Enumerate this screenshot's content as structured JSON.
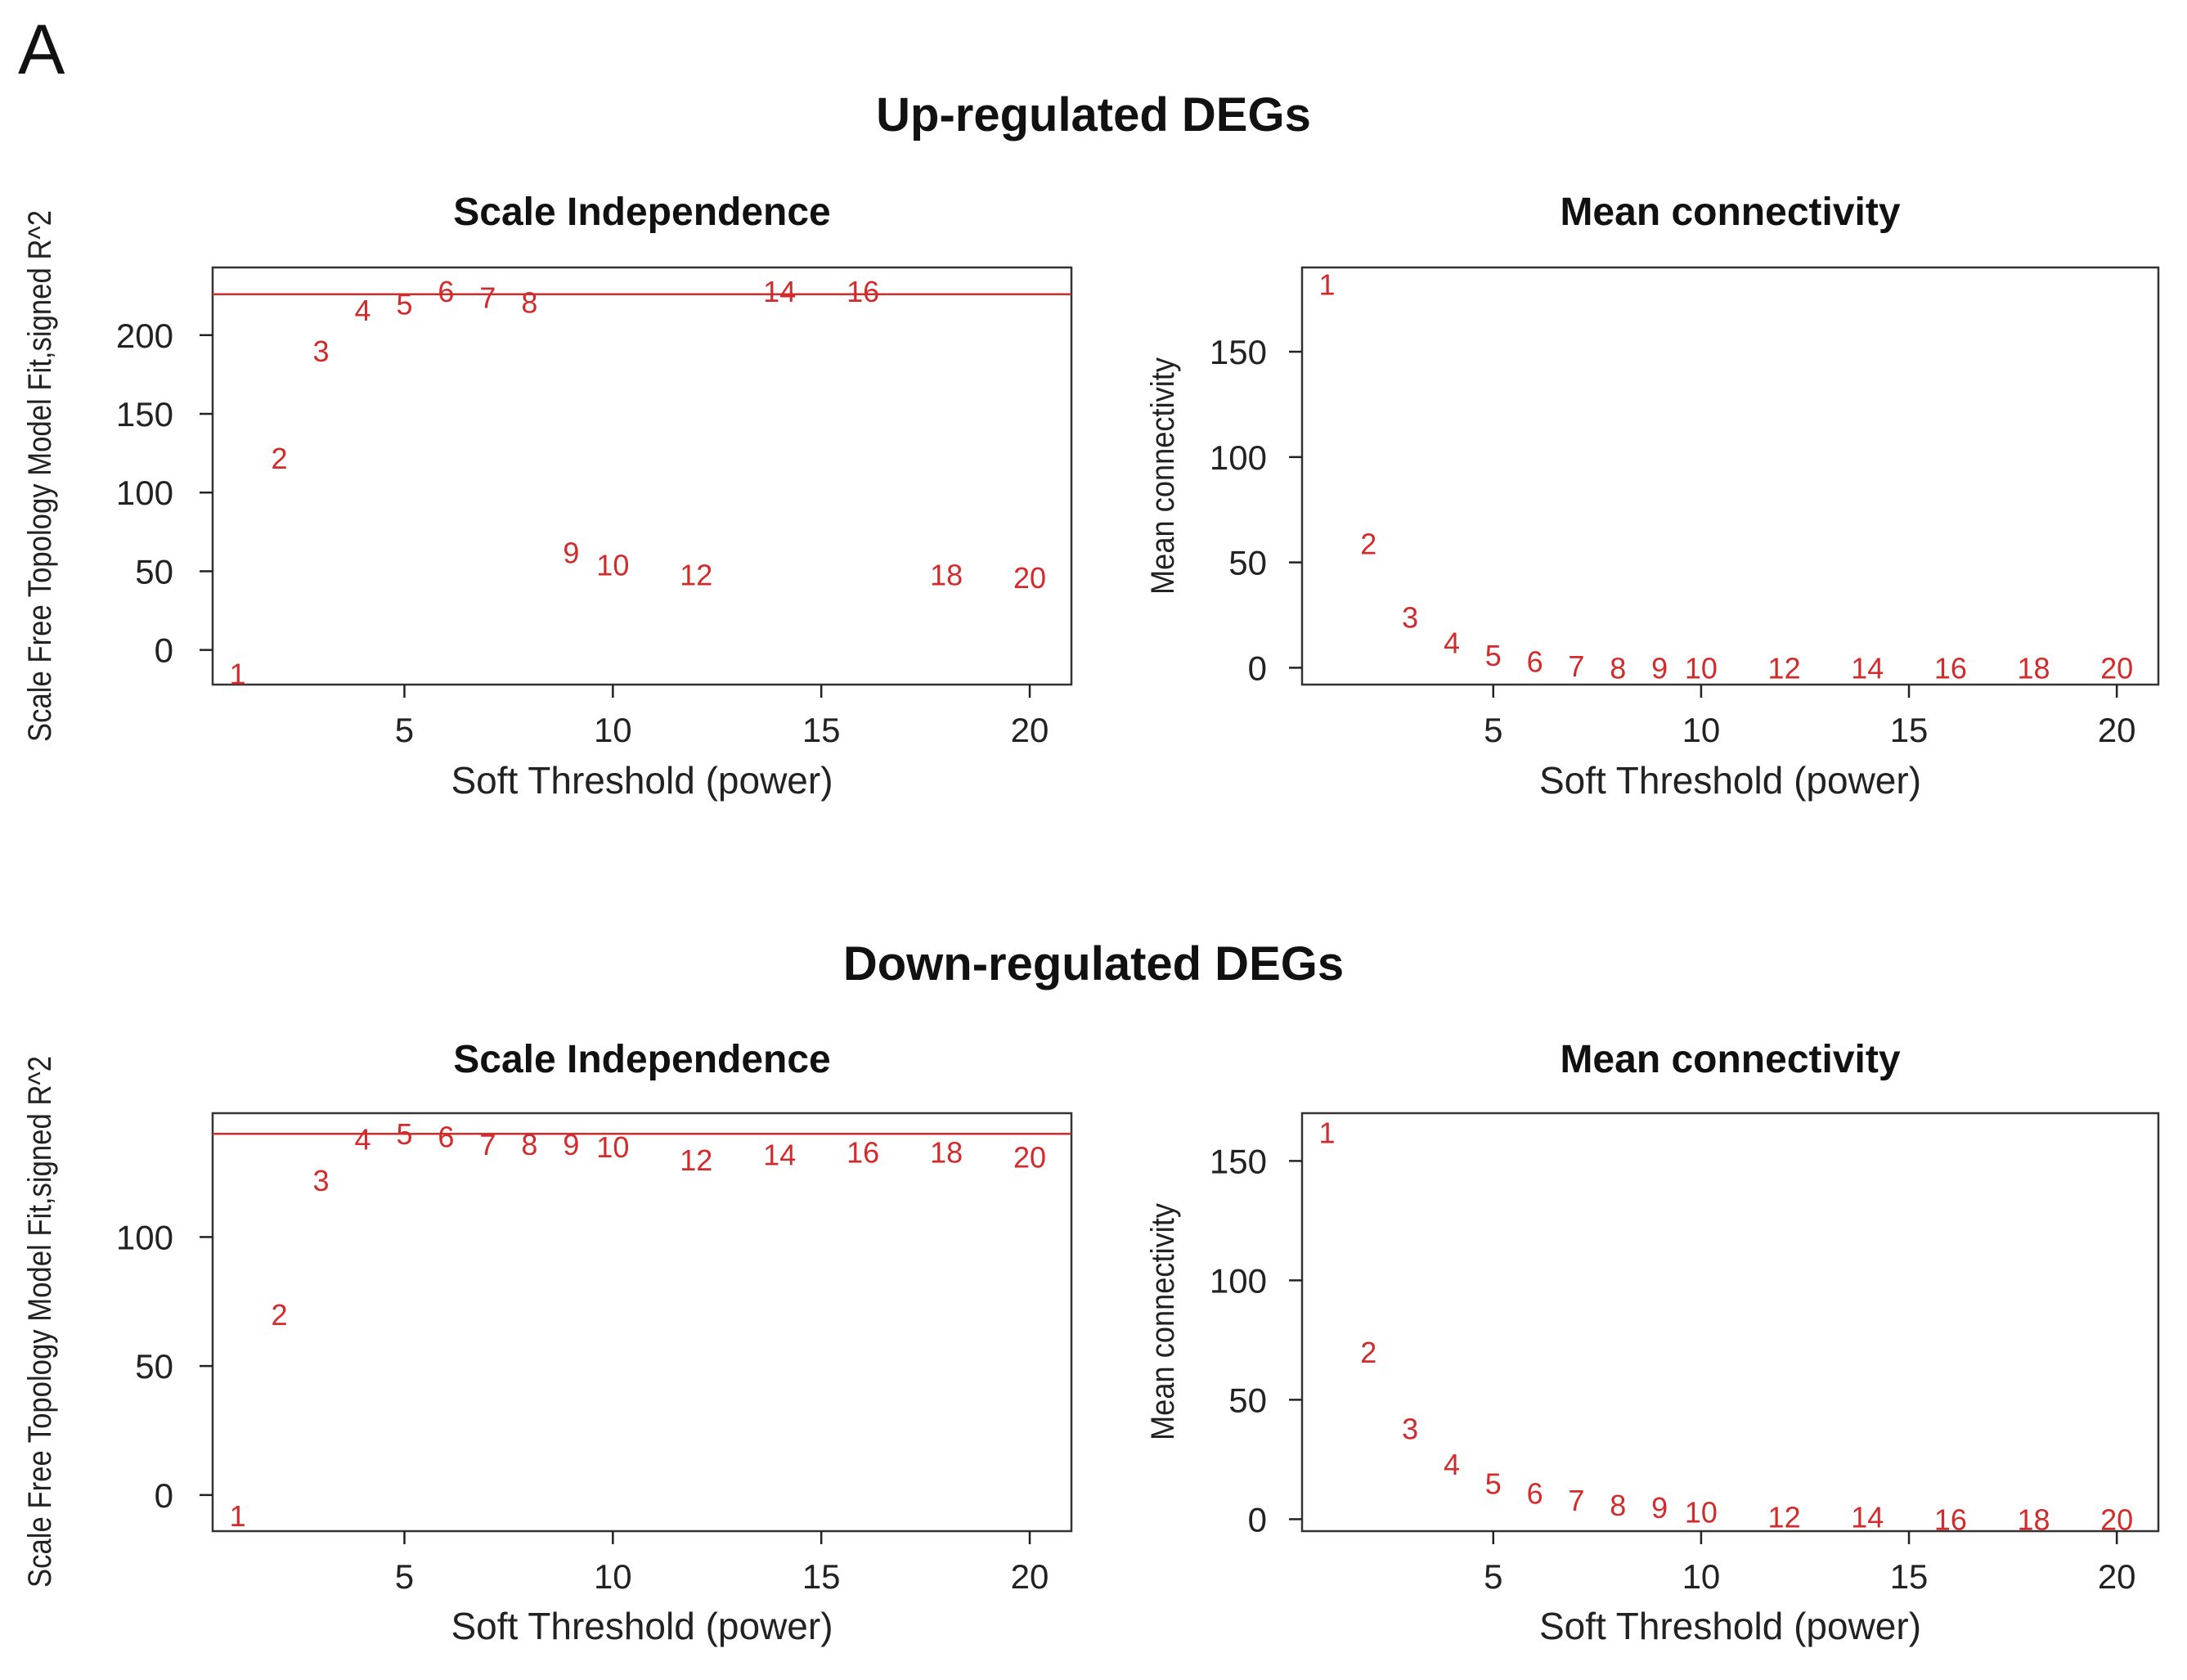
{
  "panel_label": "A",
  "sections": [
    {
      "title": "Up-regulated DEGs"
    },
    {
      "title": "Down-regulated DEGs"
    }
  ],
  "colors": {
    "marker": "#d22b2b",
    "axis": "#222222",
    "frame": "#333333"
  },
  "chart_data": [
    {
      "type": "scatter",
      "section": "Up-regulated DEGs",
      "title": "Scale Independence",
      "xlabel": "Soft Threshold (power)",
      "ylabel": "Scale Free Topology Model Fit,signed R^2",
      "xlim": [
        0.4,
        21
      ],
      "ylim": [
        -22,
        243
      ],
      "xticks": [
        5,
        10,
        15,
        20
      ],
      "yticks": [
        0,
        50,
        100,
        150,
        200
      ],
      "hline": 226,
      "labels": [
        "1",
        "2",
        "3",
        "4",
        "5",
        "6",
        "7",
        "8",
        "9",
        "10",
        "12",
        "14",
        "16",
        "18",
        "20"
      ],
      "x": [
        1,
        2,
        3,
        4,
        5,
        6,
        7,
        8,
        9,
        10,
        12,
        14,
        16,
        18,
        20
      ],
      "y": [
        -15,
        122,
        190,
        216,
        220,
        228,
        224,
        221,
        62,
        54,
        48,
        228,
        228,
        48,
        46
      ]
    },
    {
      "type": "scatter",
      "section": "Up-regulated DEGs",
      "title": "Mean connectivity",
      "xlabel": "Soft Threshold (power)",
      "ylabel": "Mean connectivity",
      "xlim": [
        0.4,
        21
      ],
      "ylim": [
        -8,
        190
      ],
      "xticks": [
        5,
        10,
        15,
        20
      ],
      "yticks": [
        0,
        50,
        100,
        150
      ],
      "labels": [
        "1",
        "2",
        "3",
        "4",
        "5",
        "6",
        "7",
        "8",
        "9",
        "10",
        "12",
        "14",
        "16",
        "18",
        "20"
      ],
      "x": [
        1,
        2,
        3,
        4,
        5,
        6,
        7,
        8,
        9,
        10,
        12,
        14,
        16,
        18,
        20
      ],
      "y": [
        182,
        59,
        24,
        12,
        6,
        3,
        1,
        0,
        0,
        0,
        0,
        0,
        0,
        0,
        0
      ]
    },
    {
      "type": "scatter",
      "section": "Down-regulated DEGs",
      "title": "Scale Independence",
      "xlabel": "Soft Threshold (power)",
      "ylabel": "Scale Free Topology Model Fit,signed R^2",
      "xlim": [
        0.4,
        21
      ],
      "ylim": [
        -14,
        148
      ],
      "xticks": [
        5,
        10,
        15,
        20
      ],
      "yticks": [
        0,
        50,
        100
      ],
      "hline": 140,
      "labels": [
        "1",
        "2",
        "3",
        "4",
        "5",
        "6",
        "7",
        "8",
        "9",
        "10",
        "12",
        "14",
        "16",
        "18",
        "20"
      ],
      "x": [
        1,
        2,
        3,
        4,
        5,
        6,
        7,
        8,
        9,
        10,
        12,
        14,
        16,
        18,
        20
      ],
      "y": [
        -8,
        70,
        122,
        138,
        140,
        139,
        136,
        136,
        136,
        135,
        130,
        132,
        133,
        133,
        131
      ]
    },
    {
      "type": "scatter",
      "section": "Down-regulated DEGs",
      "title": "Mean connectivity",
      "xlabel": "Soft Threshold (power)",
      "ylabel": "Mean connectivity",
      "xlim": [
        0.4,
        21
      ],
      "ylim": [
        -5,
        170
      ],
      "xticks": [
        5,
        10,
        15,
        20
      ],
      "yticks": [
        0,
        50,
        100,
        150
      ],
      "labels": [
        "1",
        "2",
        "3",
        "4",
        "5",
        "6",
        "7",
        "8",
        "9",
        "10",
        "12",
        "14",
        "16",
        "18",
        "20"
      ],
      "x": [
        1,
        2,
        3,
        4,
        5,
        6,
        7,
        8,
        9,
        10,
        12,
        14,
        16,
        18,
        20
      ],
      "y": [
        162,
        70,
        38,
        23,
        15,
        11,
        8,
        6,
        5,
        3,
        1,
        1,
        0,
        0,
        0
      ]
    }
  ]
}
